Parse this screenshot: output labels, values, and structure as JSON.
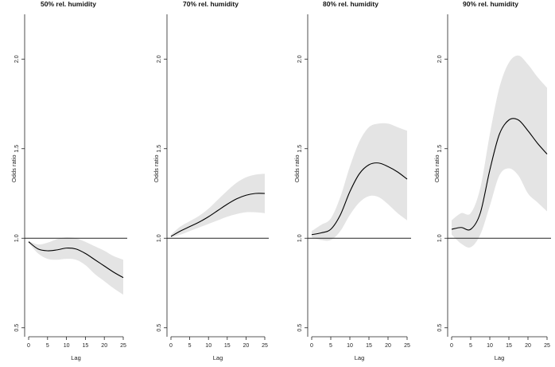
{
  "chart_data": [
    {
      "type": "line",
      "title": "50% rel. humidity",
      "xlabel": "Lag",
      "ylabel": "Odds ratio",
      "xlim": [
        0,
        25
      ],
      "ylim": [
        0.45,
        2.25
      ],
      "xticks": [
        0,
        5,
        10,
        15,
        20,
        25
      ],
      "yticks": [
        0.5,
        1.0,
        1.5,
        2.0
      ],
      "ytick_labels": [
        "0.5",
        "1.0",
        "1.5",
        "2.0"
      ],
      "reference_line": 1.0,
      "colors": {
        "line": "#000000",
        "band": "#e4e4e4"
      },
      "series": [
        {
          "name": "estimate",
          "x": [
            0,
            2.5,
            5,
            7.5,
            10,
            12.5,
            15,
            17.5,
            20,
            22.5,
            25
          ],
          "values": [
            0.98,
            0.94,
            0.93,
            0.935,
            0.945,
            0.94,
            0.915,
            0.88,
            0.845,
            0.81,
            0.78
          ]
        },
        {
          "name": "ci_lower",
          "x": [
            0,
            2.5,
            5,
            7.5,
            10,
            12.5,
            15,
            17.5,
            20,
            22.5,
            25
          ],
          "values": [
            0.975,
            0.915,
            0.885,
            0.88,
            0.885,
            0.88,
            0.85,
            0.8,
            0.76,
            0.72,
            0.685
          ]
        },
        {
          "name": "ci_upper",
          "x": [
            0,
            2.5,
            5,
            7.5,
            10,
            12.5,
            15,
            17.5,
            20,
            22.5,
            25
          ],
          "values": [
            0.985,
            0.965,
            0.975,
            0.995,
            1.005,
            1.0,
            0.98,
            0.955,
            0.93,
            0.9,
            0.88
          ]
        }
      ]
    },
    {
      "type": "line",
      "title": "70% rel. humidity",
      "xlabel": "Lag",
      "ylabel": "Odds ratio",
      "xlim": [
        0,
        25
      ],
      "ylim": [
        0.45,
        2.25
      ],
      "xticks": [
        0,
        5,
        10,
        15,
        20,
        25
      ],
      "yticks": [
        0.5,
        1.0,
        1.5,
        2.0
      ],
      "ytick_labels": [
        "0.5",
        "1.0",
        "1.5",
        "2.0"
      ],
      "reference_line": 1.0,
      "colors": {
        "line": "#000000",
        "band": "#e4e4e4"
      },
      "series": [
        {
          "name": "estimate",
          "x": [
            0,
            2.5,
            5,
            7.5,
            10,
            12.5,
            15,
            17.5,
            20,
            22.5,
            25
          ],
          "values": [
            1.01,
            1.04,
            1.065,
            1.09,
            1.12,
            1.155,
            1.19,
            1.22,
            1.24,
            1.25,
            1.25
          ]
        },
        {
          "name": "ci_lower",
          "x": [
            0,
            2.5,
            5,
            7.5,
            10,
            12.5,
            15,
            17.5,
            20,
            22.5,
            25
          ],
          "values": [
            1.005,
            1.02,
            1.04,
            1.06,
            1.08,
            1.1,
            1.12,
            1.135,
            1.145,
            1.145,
            1.14
          ]
        },
        {
          "name": "ci_upper",
          "x": [
            0,
            2.5,
            5,
            7.5,
            10,
            12.5,
            15,
            17.5,
            20,
            22.5,
            25
          ],
          "values": [
            1.02,
            1.065,
            1.095,
            1.125,
            1.165,
            1.215,
            1.265,
            1.31,
            1.34,
            1.355,
            1.36
          ]
        }
      ]
    },
    {
      "type": "line",
      "title": "80% rel. humidity",
      "xlabel": "Lag",
      "ylabel": "Odds ratio",
      "xlim": [
        0,
        25
      ],
      "ylim": [
        0.45,
        2.25
      ],
      "xticks": [
        0,
        5,
        10,
        15,
        20,
        25
      ],
      "yticks": [
        0.5,
        1.0,
        1.5,
        2.0
      ],
      "ytick_labels": [
        "0.5",
        "1.0",
        "1.5",
        "2.0"
      ],
      "reference_line": 1.0,
      "colors": {
        "line": "#000000",
        "band": "#e4e4e4"
      },
      "series": [
        {
          "name": "estimate",
          "x": [
            0,
            2.5,
            5,
            7.5,
            10,
            12.5,
            15,
            17.5,
            20,
            22.5,
            25
          ],
          "values": [
            1.02,
            1.03,
            1.05,
            1.13,
            1.26,
            1.36,
            1.41,
            1.42,
            1.4,
            1.37,
            1.33
          ]
        },
        {
          "name": "ci_lower",
          "x": [
            0,
            2.5,
            5,
            7.5,
            10,
            12.5,
            15,
            17.5,
            20,
            22.5,
            25
          ],
          "values": [
            1.005,
            0.99,
            0.99,
            1.04,
            1.13,
            1.2,
            1.235,
            1.23,
            1.19,
            1.14,
            1.1
          ]
        },
        {
          "name": "ci_upper",
          "x": [
            0,
            2.5,
            5,
            7.5,
            10,
            12.5,
            15,
            17.5,
            20,
            22.5,
            25
          ],
          "values": [
            1.04,
            1.075,
            1.11,
            1.23,
            1.4,
            1.54,
            1.62,
            1.64,
            1.64,
            1.62,
            1.6
          ]
        }
      ]
    },
    {
      "type": "line",
      "title": "90% rel. humidity",
      "xlabel": "Lag",
      "ylabel": "Odds ratio",
      "xlim": [
        0,
        25
      ],
      "ylim": [
        0.45,
        2.25
      ],
      "xticks": [
        0,
        5,
        10,
        15,
        20,
        25
      ],
      "yticks": [
        0.5,
        1.0,
        1.5,
        2.0
      ],
      "ytick_labels": [
        "0.5",
        "1.0",
        "1.5",
        "2.0"
      ],
      "reference_line": 1.0,
      "colors": {
        "line": "#000000",
        "band": "#e4e4e4"
      },
      "series": [
        {
          "name": "estimate",
          "x": [
            0,
            2.5,
            5,
            7.5,
            10,
            12.5,
            15,
            17.5,
            20,
            22.5,
            25
          ],
          "values": [
            1.05,
            1.06,
            1.05,
            1.14,
            1.38,
            1.58,
            1.66,
            1.66,
            1.6,
            1.53,
            1.47
          ]
        },
        {
          "name": "ci_lower",
          "x": [
            0,
            2.5,
            5,
            7.5,
            10,
            12.5,
            15,
            17.5,
            20,
            22.5,
            25
          ],
          "values": [
            1.02,
            0.97,
            0.95,
            1.02,
            1.18,
            1.35,
            1.39,
            1.35,
            1.25,
            1.2,
            1.15
          ]
        },
        {
          "name": "ci_upper",
          "x": [
            0,
            2.5,
            5,
            7.5,
            10,
            12.5,
            15,
            17.5,
            20,
            22.5,
            25
          ],
          "values": [
            1.1,
            1.14,
            1.14,
            1.28,
            1.58,
            1.84,
            1.98,
            2.02,
            1.97,
            1.9,
            1.84
          ]
        }
      ]
    }
  ]
}
